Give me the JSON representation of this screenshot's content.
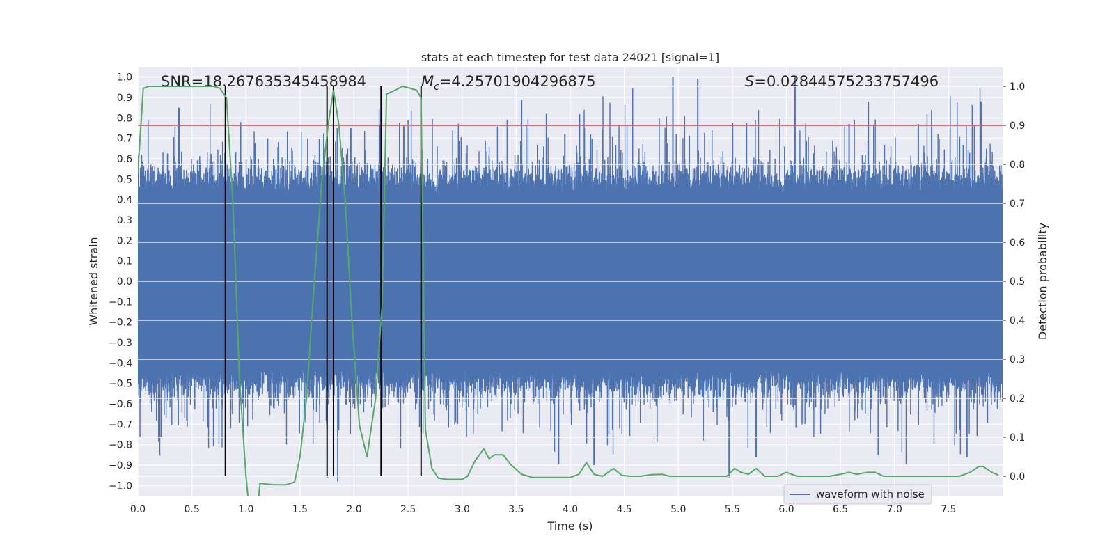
{
  "chart_data": {
    "type": "line",
    "title": "stats at each timestep for test data 24021 [signal=1]",
    "xlabel": "Time (s)",
    "ylabel": "Whitened strain",
    "y2label": "Detection probability",
    "xlim": [
      0.0,
      8.0
    ],
    "ylim": [
      -1.05,
      1.05
    ],
    "y2lim": [
      -0.05,
      1.05
    ],
    "xticks": [
      "0.0",
      "0.5",
      "1.0",
      "1.5",
      "2.0",
      "2.5",
      "3.0",
      "3.5",
      "4.0",
      "4.5",
      "5.0",
      "5.5",
      "6.0",
      "6.5",
      "7.0",
      "7.5"
    ],
    "xtick_values": [
      0.0,
      0.5,
      1.0,
      1.5,
      2.0,
      2.5,
      3.0,
      3.5,
      4.0,
      4.5,
      5.0,
      5.5,
      6.0,
      6.5,
      7.0,
      7.5
    ],
    "yticks": [
      "1.0",
      "0.9",
      "0.8",
      "0.7",
      "0.6",
      "0.5",
      "0.4",
      "0.3",
      "0.2",
      "0.1",
      "0.0",
      "−0.1",
      "−0.2",
      "−0.3",
      "−0.4",
      "−0.5",
      "−0.6",
      "−0.7",
      "−0.8",
      "−0.9",
      "−1.0"
    ],
    "ytick_values": [
      1.0,
      0.9,
      0.8,
      0.7,
      0.6,
      0.5,
      0.4,
      0.3,
      0.2,
      0.1,
      0.0,
      -0.1,
      -0.2,
      -0.3,
      -0.4,
      -0.5,
      -0.6,
      -0.7,
      -0.8,
      -0.9,
      -1.0
    ],
    "y2ticks": [
      "1.0",
      "0.9",
      "0.8",
      "0.7",
      "0.6",
      "0.5",
      "0.4",
      "0.3",
      "0.2",
      "0.1",
      "0.0"
    ],
    "y2tick_values": [
      1.0,
      0.9,
      0.8,
      0.7,
      0.6,
      0.5,
      0.4,
      0.3,
      0.2,
      0.1,
      0.0
    ],
    "grid": true,
    "annotations": {
      "snr": "SNR=18.267635345458984",
      "mc_symbol": "M",
      "mc_sub": "c",
      "mc_value": "=4.25701904296875",
      "s_symbol": "S",
      "s_value": "=0.02844575233757496"
    },
    "legend": {
      "label": "waveform with noise",
      "placement": "bottom-right"
    },
    "threshold": {
      "value": 0.9,
      "axis": "right",
      "color": "#c44e52"
    },
    "vlines": [
      0.81,
      1.75,
      1.81,
      2.25,
      2.62
    ],
    "vline_range": [
      0.0,
      1.0
    ],
    "waveform": {
      "name": "waveform with noise",
      "color": "#4c72b0",
      "samples": 4096,
      "envelope": 0.42,
      "spike_times": [
        0.38,
        0.95,
        1.2,
        1.72,
        1.97,
        2.46,
        2.62,
        3.55,
        3.78,
        3.95,
        4.22,
        4.95,
        5.18,
        5.47,
        5.72,
        6.08,
        6.58,
        6.85,
        7.22,
        7.67,
        7.8
      ],
      "spike_values": [
        0.85,
        0.78,
        0.7,
        0.72,
        0.75,
        0.76,
        -0.74,
        0.89,
        0.82,
        0.72,
        -0.9,
        1.0,
        0.99,
        -0.96,
        -0.86,
        1.0,
        0.77,
        -0.85,
        0.77,
        -0.86,
        0.88
      ]
    },
    "probability": {
      "color": "#55a868",
      "x": [
        0.0,
        0.05,
        0.1,
        0.2,
        0.3,
        0.4,
        0.5,
        0.6,
        0.7,
        0.76,
        0.82,
        0.88,
        0.94,
        1.0,
        1.07,
        1.13,
        1.25,
        1.37,
        1.45,
        1.5,
        1.56,
        1.62,
        1.7,
        1.76,
        1.81,
        1.86,
        1.92,
        1.98,
        2.05,
        2.12,
        2.2,
        2.26,
        2.3,
        2.38,
        2.45,
        2.52,
        2.58,
        2.62,
        2.66,
        2.72,
        2.78,
        2.85,
        3.0,
        3.05,
        3.12,
        3.2,
        3.25,
        3.3,
        3.38,
        3.45,
        3.55,
        3.65,
        4.0,
        4.08,
        4.15,
        4.22,
        4.3,
        4.4,
        4.48,
        4.56,
        4.65,
        4.75,
        4.85,
        4.92,
        5.0,
        5.2,
        5.45,
        5.52,
        5.58,
        5.65,
        5.72,
        5.8,
        5.92,
        6.0,
        6.1,
        6.2,
        6.4,
        6.5,
        6.58,
        6.65,
        6.75,
        6.82,
        6.9,
        7.0,
        7.2,
        7.4,
        7.6,
        7.7,
        7.78,
        7.82,
        7.9,
        7.96
      ],
      "y": [
        0.78,
        0.995,
        1.0,
        1.0,
        1.0,
        1.0,
        1.0,
        1.0,
        1.0,
        0.995,
        0.97,
        0.7,
        0.25,
        0.0,
        -0.2,
        -0.018,
        -0.022,
        -0.022,
        -0.015,
        0.05,
        0.2,
        0.45,
        0.75,
        0.9,
        0.99,
        0.9,
        0.7,
        0.4,
        0.13,
        0.05,
        0.2,
        0.44,
        0.98,
        0.99,
        1.0,
        0.995,
        0.99,
        0.97,
        0.12,
        0.02,
        -0.005,
        -0.008,
        -0.008,
        0.0,
        0.04,
        0.07,
        0.045,
        0.055,
        0.055,
        0.03,
        0.005,
        -0.003,
        -0.003,
        0.005,
        0.035,
        0.005,
        0.0,
        0.02,
        0.002,
        0.0,
        0.0,
        0.004,
        0.005,
        0.0,
        0.0,
        0.0,
        0.0,
        0.02,
        0.01,
        0.005,
        0.02,
        0.0,
        0.0,
        0.01,
        0.0,
        0.0,
        0.0,
        0.005,
        0.01,
        0.005,
        0.01,
        0.01,
        0.0,
        0.0,
        0.0,
        0.0,
        0.0,
        0.01,
        0.025,
        0.025,
        0.01,
        0.003
      ]
    }
  }
}
